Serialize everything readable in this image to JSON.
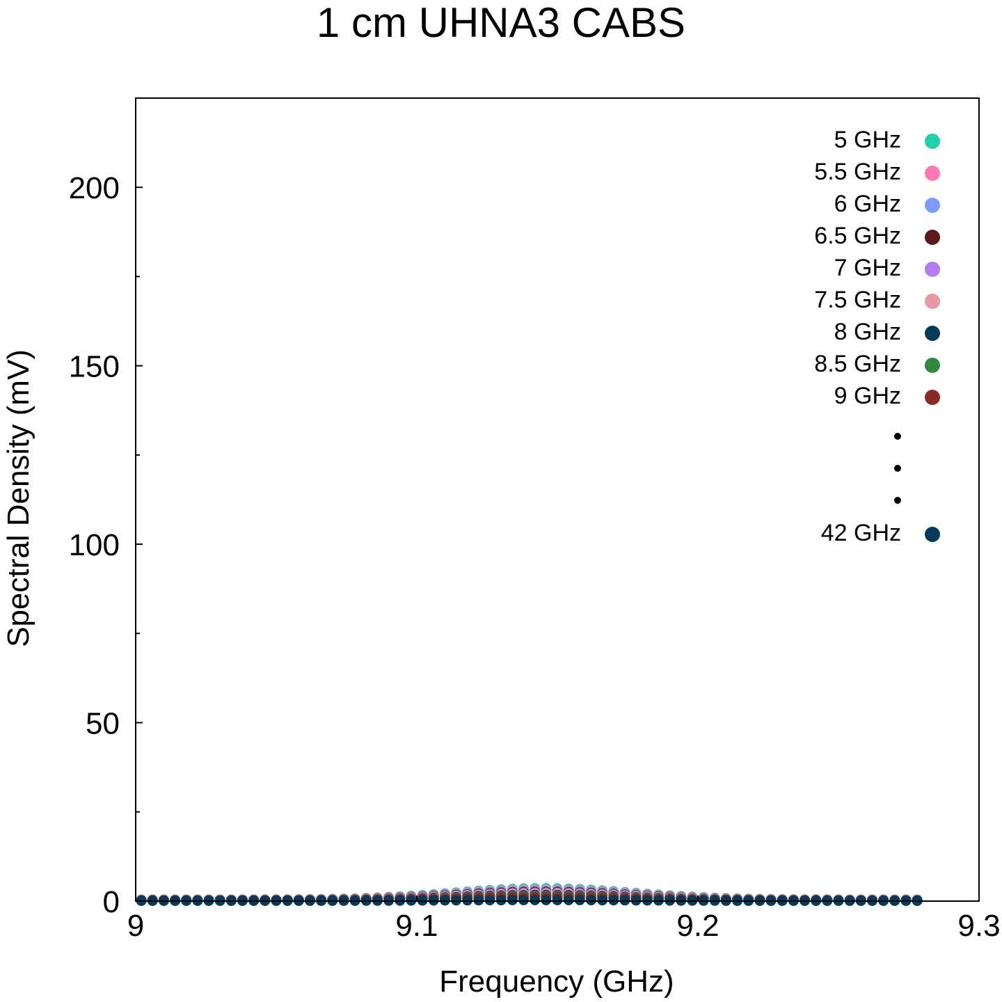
{
  "chart_data": {
    "type": "scatter",
    "title": "1 cm UHNA3 CABS",
    "xlabel": "Frequency (GHz)",
    "ylabel": "Spectral Density (mV)",
    "xlim": [
      9.0,
      9.3
    ],
    "ylim": [
      0,
      225
    ],
    "x_ticks": [
      9.0,
      9.1,
      9.2,
      9.3
    ],
    "x_tick_labels": [
      "9",
      "9.1",
      "9.2",
      "9.3"
    ],
    "y_ticks": [
      0,
      50,
      100,
      150,
      200
    ],
    "y_tick_labels": [
      "0",
      "50",
      "100",
      "150",
      "200"
    ],
    "y_minor_ticks": [
      25,
      75,
      125,
      175
    ],
    "grid": false,
    "legend_position": "top-right",
    "legend_ellipsis": true,
    "x_range": [
      9.002,
      9.278
    ],
    "peak_x": 9.145,
    "series": [
      {
        "name": "5 GHz",
        "color": "#20d0a8",
        "baseline": 0.4,
        "peak": 3.6
      },
      {
        "name": "5.5 GHz",
        "color": "#ff78b4",
        "baseline": 0.4,
        "peak": 3.2
      },
      {
        "name": "6 GHz",
        "color": "#7c9cff",
        "baseline": 0.4,
        "peak": 2.9
      },
      {
        "name": "6.5 GHz",
        "color": "#5c1a1a",
        "baseline": 0.3,
        "peak": 2.6
      },
      {
        "name": "7 GHz",
        "color": "#b47cf0",
        "baseline": 0.3,
        "peak": 2.3
      },
      {
        "name": "7.5 GHz",
        "color": "#e896a4",
        "baseline": 0.3,
        "peak": 2.0
      },
      {
        "name": "8 GHz",
        "color": "#083a58",
        "baseline": 0.2,
        "peak": 1.7
      },
      {
        "name": "8.5 GHz",
        "color": "#2e8b3e",
        "baseline": 0.2,
        "peak": 1.4
      },
      {
        "name": "9 GHz",
        "color": "#8b2a2a",
        "baseline": 0.2,
        "peak": 1.1
      },
      {
        "name": "42 GHz",
        "color": "#083a58",
        "baseline": 0.1,
        "peak": 0.3
      }
    ]
  }
}
